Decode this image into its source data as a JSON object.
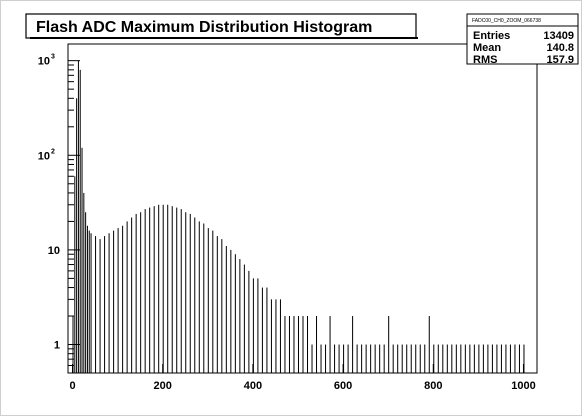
{
  "title": "Flash ADC Maximum Distribution Histogram",
  "stats_box": {
    "name": "FADC00_CH0_ZOOM_066738",
    "rows": [
      {
        "label": "Entries",
        "value": "13409"
      },
      {
        "label": "Mean",
        "value": "140.8"
      },
      {
        "label": "RMS",
        "value": "157.9"
      }
    ]
  },
  "chart_data": {
    "type": "bar",
    "title": "Flash ADC Maximum Distribution Histogram",
    "xlabel": "",
    "ylabel": "",
    "xlim": [
      -10,
      1030
    ],
    "ylim": [
      0.5,
      1500
    ],
    "y_scale": "log",
    "grid": false,
    "legend": "none",
    "x_tick_labels": [
      "0",
      "200",
      "400",
      "600",
      "800",
      "1000"
    ],
    "y_tick_labels": [
      {
        "base": "1",
        "exp": ""
      },
      {
        "base": "10",
        "exp": ""
      },
      {
        "base": "10",
        "exp": "2"
      },
      {
        "base": "10",
        "exp": "3"
      }
    ],
    "bin_width": 2,
    "x": [
      0,
      4,
      8,
      12,
      16,
      20,
      24,
      28,
      32,
      36,
      40,
      50,
      60,
      70,
      80,
      90,
      100,
      110,
      120,
      130,
      140,
      150,
      160,
      170,
      180,
      190,
      200,
      210,
      220,
      230,
      240,
      250,
      260,
      270,
      280,
      290,
      300,
      310,
      320,
      330,
      340,
      350,
      360,
      370,
      380,
      390,
      400,
      410,
      420,
      430,
      440,
      450,
      460,
      470,
      480,
      490,
      500,
      510,
      520,
      530,
      540,
      550,
      560,
      570,
      580,
      590,
      600,
      610,
      620,
      630,
      640,
      650,
      660,
      670,
      680,
      690,
      700,
      710,
      720,
      730,
      740,
      750,
      760,
      770,
      780,
      790,
      800,
      810,
      820,
      830,
      840,
      850,
      860,
      870,
      880,
      890,
      900,
      910,
      920,
      930,
      940,
      950,
      960,
      970,
      980,
      990,
      1000
    ],
    "values": [
      2,
      60,
      400,
      1000,
      800,
      120,
      40,
      25,
      18,
      16,
      15,
      14,
      13,
      14,
      15,
      16,
      17,
      18,
      20,
      22,
      24,
      25,
      27,
      28,
      29,
      30,
      30,
      30,
      29,
      28,
      27,
      25,
      24,
      22,
      20,
      19,
      17,
      16,
      14,
      13,
      11,
      10,
      9,
      8,
      7,
      6,
      5,
      5,
      4,
      4,
      3,
      3,
      3,
      2,
      2,
      2,
      2,
      2,
      2,
      1,
      2,
      1,
      1,
      2,
      1,
      1,
      1,
      1,
      2,
      1,
      1,
      1,
      1,
      1,
      1,
      1,
      2,
      1,
      1,
      1,
      1,
      1,
      1,
      1,
      1,
      2,
      1,
      1,
      1,
      1,
      1,
      1,
      1,
      1,
      1,
      1,
      1,
      1,
      1,
      1,
      1,
      1,
      1,
      1,
      1,
      1,
      1
    ]
  }
}
